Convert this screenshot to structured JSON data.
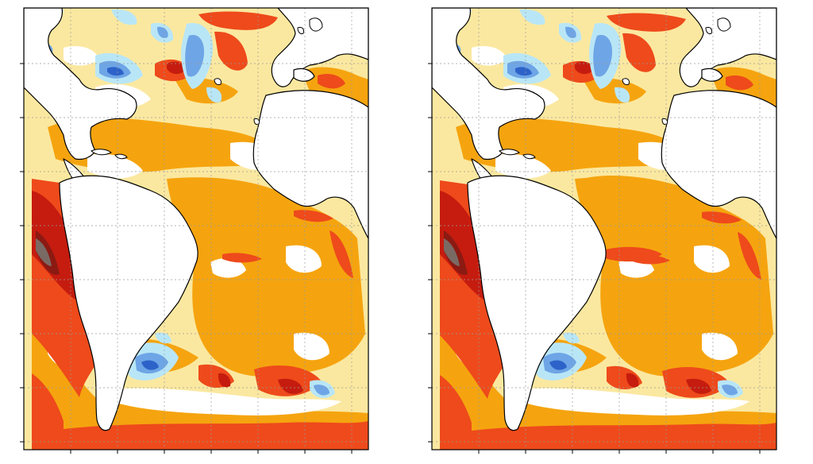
{
  "figure": {
    "panels": [
      {
        "id": "left",
        "description_visible_text": ""
      },
      {
        "id": "right",
        "description_visible_text": ""
      }
    ],
    "colors": {
      "ocean_white": "#ffffff",
      "pale_yellow": "#fbe8a0",
      "yellow": "#f8d56a",
      "orange": "#f5a40f",
      "red_orange": "#ee4a1b",
      "dark_red": "#c51c0f",
      "deep_red": "#8b1a12",
      "grey_brown": "#7a6a64",
      "light_blue": "#b9e6f6",
      "blue": "#6ea5e6",
      "dark_blue": "#2d63c9",
      "purple_blue": "#6e5aa8",
      "coast": "#000000",
      "grid": "#9a9a9a"
    }
  }
}
